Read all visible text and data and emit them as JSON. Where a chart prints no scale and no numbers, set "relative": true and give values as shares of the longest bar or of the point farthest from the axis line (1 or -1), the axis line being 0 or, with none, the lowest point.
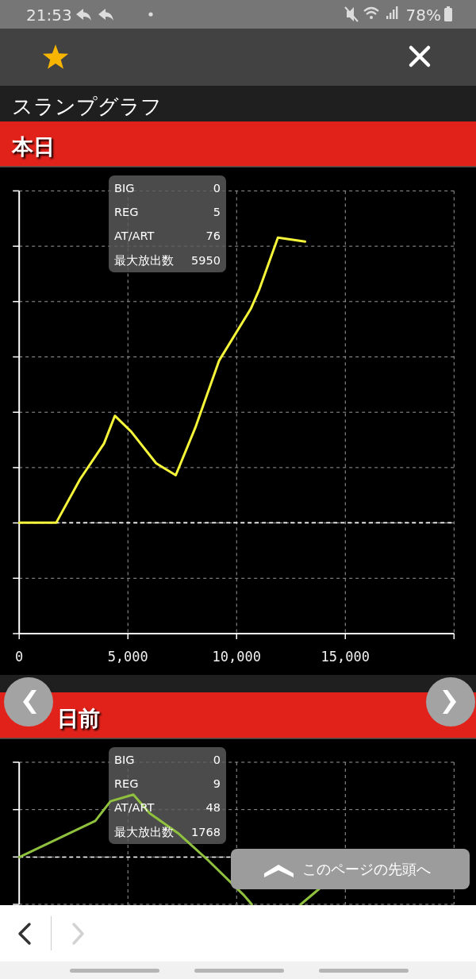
{
  "chart_data": [
    {
      "type": "line",
      "title": "スランプグラフ",
      "subtitle": "本日",
      "relative": true,
      "grid": true,
      "tick_labels": "x",
      "xlim": [
        0,
        20000
      ],
      "xticks": [
        0,
        {
          "value": 5000,
          "label": "5,000"
        },
        {
          "value": 10000,
          "label": "10,000"
        },
        {
          "value": 15000,
          "label": "15,000"
        },
        {
          "value": 20000,
          "label": null
        }
      ],
      "series": [
        {
          "color": "#f5f53a",
          "x": [
            0,
            1700,
            2800,
            3900,
            4400,
            5150,
            6300,
            7200,
            8100,
            9200,
            10650,
            11050,
            11900,
            13150
          ],
          "values": [
            0.28,
            0.28,
            0.39,
            0.48,
            0.55,
            0.51,
            0.43,
            0.4,
            0.52,
            0.69,
            0.82,
            0.87,
            1,
            0.99
          ]
        }
      ],
      "ref_lines": [
        {
          "axis": "y",
          "value": 0.28,
          "color": "#ffffff",
          "line_style": "dashed"
        }
      ],
      "annotations": [
        "21:53",
        "78%",
        "BIG",
        "0",
        "REG",
        "5",
        "AT/ART",
        "76",
        "最大放出数",
        "5950"
      ]
    },
    {
      "type": "line",
      "title": "日前",
      "relative": true,
      "grid": true,
      "tick_labels": false,
      "xlim": [
        0,
        20000
      ],
      "xticks": [
        0,
        5000,
        10000,
        15000,
        20000
      ],
      "series": [
        {
          "color": "#8fc13e",
          "x": [
            0,
            3500,
            4200,
            5250,
            6000,
            7300,
            8700,
            10350,
            10700,
            11800,
            12950,
            13850
          ],
          "values": [
            0.43,
            0.76,
            0.94,
            1,
            0.83,
            0.65,
            0.4,
            0.08,
            0,
            null,
            0,
            0.15
          ]
        }
      ],
      "ref_lines": [
        {
          "axis": "y",
          "value": 0.43,
          "color": "#ffffff",
          "line_style": "dashed"
        }
      ],
      "annotations": [
        "BIG",
        "0",
        "REG",
        "9",
        "AT/ART",
        "48",
        "最大放出数",
        "1768",
        "このページの先頭へ"
      ]
    }
  ]
}
